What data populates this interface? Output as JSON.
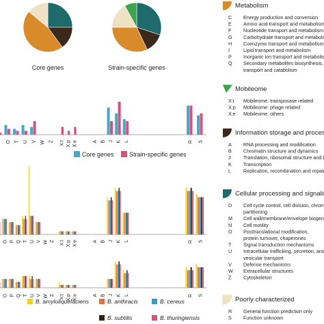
{
  "pie_labels": {
    "core": "Core genes",
    "strain": "Strain-specific genes"
  },
  "colors": {
    "metabolism": "#d98b2b",
    "mobileome": "#3fa34d",
    "info": "#3b2a1c",
    "cellular": "#1f6b6b",
    "poorly": "#efe2c4",
    "core_bar": "#4aa6c4",
    "strain_bar": "#d6517d",
    "b_amylo": "#f2d21b",
    "b_anthracis": "#e0704a",
    "b_cereus": "#3a9bbf",
    "b_subtilis": "#2b2118",
    "b_thuringiensis": "#c95a7a"
  },
  "legend_top": {
    "core": "Core genes",
    "strain": "Strain-specific genes"
  },
  "legend_species": {
    "b_amylo": "B. amyloliquefaciens",
    "b_anthracis": "B. anthracis",
    "b_cereus": "B. cereus",
    "b_subtilis": "B. subtilis",
    "b_thuringiensis": "B. thuringiensis"
  },
  "categories": {
    "metabolism": {
      "title": "Metabolism",
      "rows": [
        [
          "C",
          "Energy production and conversion"
        ],
        [
          "E",
          "Amino acid transport and metabolism"
        ],
        [
          "F",
          "Nucleotide transport and metabolism"
        ],
        [
          "G",
          "Carbohydrate transport and metabolism"
        ],
        [
          "H",
          "Coenzyme transport and metabolism"
        ],
        [
          "I",
          "Lipid transport and metabolism"
        ],
        [
          "P",
          "Inorganic ion transport and metabolism"
        ],
        [
          "Q",
          "Secondary metabolites biosynthesis,"
        ],
        [
          "",
          "transport and catabolism"
        ]
      ]
    },
    "mobileome": {
      "title": "Mobileome",
      "rows": [
        [
          "X:t",
          "Mobileome: transposase related"
        ],
        [
          "X:p",
          "Mobileome: phage related"
        ],
        [
          "X:e",
          "Mobileome: others"
        ]
      ]
    },
    "info": {
      "title": "Information storage and processing",
      "rows": [
        [
          "A",
          "RNA processing and modification"
        ],
        [
          "B",
          "Chromatin structure and dynamics"
        ],
        [
          "J",
          "Translation, ribosomal structure and biogenesis"
        ],
        [
          "K",
          "Transcription"
        ],
        [
          "L",
          "Replication, recombination and repair"
        ]
      ]
    },
    "cellular": {
      "title": "Cellular processing and signaling",
      "rows": [
        [
          "D",
          "Cell cycle control, cell division, chromosome"
        ],
        [
          "",
          "partitioning"
        ],
        [
          "M",
          "Cell wall/membrane/envelope biogenesis"
        ],
        [
          "N",
          "Cell motility"
        ],
        [
          "O",
          "Posttranslational modification,"
        ],
        [
          "",
          "protein turnover, chaperones"
        ],
        [
          "T",
          "Signal transduction mechanisms"
        ],
        [
          "U",
          "Intracellular trafficking, secretion, and"
        ],
        [
          "",
          "vesicular transport"
        ],
        [
          "V",
          "Defense mechanisms"
        ],
        [
          "W",
          "Extracellular structures"
        ],
        [
          "Z",
          "Cytoskeleton"
        ]
      ]
    },
    "poorly": {
      "title": "Poorly characterized",
      "rows": [
        [
          "R",
          "General function prediction only"
        ],
        [
          "S",
          "Function unknown"
        ]
      ]
    }
  },
  "chart_data": [
    {
      "type": "pie",
      "title": "Core genes",
      "slices": [
        {
          "label": "Cellular processing and signaling",
          "value": 25,
          "color": "#1f6b6b"
        },
        {
          "label": "Information storage and processing",
          "value": 15,
          "color": "#3b2a1c"
        },
        {
          "label": "Metabolism",
          "value": 46,
          "color": "#d98b2b"
        },
        {
          "label": "Poorly characterized",
          "value": 14,
          "color": "#efe2c4"
        }
      ]
    },
    {
      "type": "pie",
      "title": "Strain-specific genes",
      "slices": [
        {
          "label": "Cellular processing and signaling",
          "value": 30,
          "color": "#1f6b6b"
        },
        {
          "label": "Information storage and processing",
          "value": 13,
          "color": "#3b2a1c"
        },
        {
          "label": "Metabolism",
          "value": 32,
          "color": "#d98b2b"
        },
        {
          "label": "Poorly characterized",
          "value": 17,
          "color": "#efe2c4"
        },
        {
          "label": "Mobileome",
          "value": 8,
          "color": "#3fa34d"
        }
      ]
    },
    {
      "type": "bar",
      "groups": [
        [
          "N",
          "O",
          "T",
          "U",
          "V",
          "W",
          "Z"
        ],
        [
          "X:t",
          "X:p",
          "X:e"
        ],
        [
          "A",
          "B",
          "J",
          "K",
          "L"
        ],
        [
          "R",
          "S"
        ]
      ],
      "series": [
        {
          "name": "Core genes",
          "color": "#4aa6c4",
          "values": {
            "N": 2,
            "O": 5,
            "T": 3,
            "U": 5,
            "V": 4,
            "W": 0,
            "Z": 0,
            "X:t": 0,
            "X:p": 0,
            "X:e": 0,
            "A": 0,
            "B": 0,
            "J": 14,
            "K": 11,
            "L": 8,
            "R": 15,
            "S": 10
          }
        },
        {
          "name": "Strain-specific genes",
          "color": "#d6517d",
          "values": {
            "N": 1,
            "O": 3,
            "T": 2,
            "U": 2,
            "V": 7,
            "W": 0,
            "Z": 0,
            "X:t": 4,
            "X:p": 2,
            "X:e": 4,
            "A": 0,
            "B": 0,
            "J": 7,
            "K": 17,
            "L": 7,
            "R": 15,
            "S": 11
          }
        }
      ]
    },
    {
      "type": "bar",
      "groups": [
        [
          "N",
          "O",
          "P",
          "Q",
          "T",
          "U",
          "V",
          "W",
          "Z"
        ],
        [
          "X:t",
          "X:p",
          "X:e"
        ],
        [
          "A",
          "B",
          "J",
          "K",
          "L"
        ],
        [
          "R",
          "S"
        ]
      ],
      "series": [
        {
          "name": "B. amyloliquefaciens",
          "color": "#f2d21b",
          "values": {
            "N": 4,
            "O": 5,
            "P": 4,
            "Q": 3,
            "T": 6,
            "U": 22,
            "V": 4,
            "W": 0,
            "Z": 0,
            "X:t": 1,
            "X:p": 1,
            "X:e": 1,
            "A": 0,
            "B": 0,
            "J": 12,
            "K": 15,
            "L": 7,
            "R": 15,
            "S": 13
          }
        },
        {
          "name": "B. anthracis",
          "color": "#e0704a",
          "values": {
            "N": 4,
            "O": 5,
            "P": 4,
            "Q": 3,
            "T": 5,
            "U": 6,
            "V": 4,
            "W": 0,
            "Z": 0,
            "X:t": 1,
            "X:p": 1,
            "X:e": 1,
            "A": 0,
            "B": 0,
            "J": 11,
            "K": 14,
            "L": 7,
            "R": 14,
            "S": 12
          }
        },
        {
          "name": "B. cereus",
          "color": "#3a9bbf",
          "values": {
            "N": 4,
            "O": 5,
            "P": 4,
            "Q": 3,
            "T": 5,
            "U": 6,
            "V": 4,
            "W": 0,
            "Z": 0,
            "X:t": 1,
            "X:p": 1,
            "X:e": 1,
            "A": 0,
            "B": 0,
            "J": 11,
            "K": 14,
            "L": 7,
            "R": 14,
            "S": 12
          }
        },
        {
          "name": "B. subtilis",
          "color": "#2b2118",
          "values": {
            "N": 4,
            "O": 5,
            "P": 4,
            "Q": 3,
            "T": 6,
            "U": 6,
            "V": 4,
            "W": 0,
            "Z": 0,
            "X:t": 1,
            "X:p": 1,
            "X:e": 1,
            "A": 0,
            "B": 0,
            "J": 12,
            "K": 15,
            "L": 7,
            "R": 15,
            "S": 12
          }
        },
        {
          "name": "B. thuringiensis",
          "color": "#c95a7a",
          "values": {
            "N": 4,
            "O": 5,
            "P": 4,
            "Q": 3,
            "T": 5,
            "U": 6,
            "V": 4,
            "W": 0,
            "Z": 0,
            "X:t": 1,
            "X:p": 1,
            "X:e": 1,
            "A": 0,
            "B": 0,
            "J": 11,
            "K": 14,
            "L": 7,
            "R": 14,
            "S": 12
          }
        }
      ]
    },
    {
      "type": "bar",
      "groups": [
        [
          "N",
          "O",
          "P",
          "Q",
          "T",
          "U",
          "V",
          "W",
          "Z"
        ],
        [
          "X:t",
          "X:p",
          "X:e"
        ],
        [
          "A",
          "B",
          "J",
          "K",
          "L"
        ],
        [
          "R",
          "S"
        ]
      ],
      "series": [
        {
          "name": "B. amyloliquefaciens",
          "color": "#f2d21b",
          "values": {
            "N": 2,
            "O": 3,
            "P": 3,
            "Q": 2,
            "T": 4,
            "U": 4,
            "V": 3,
            "W": 0,
            "Z": 0,
            "X:t": 2,
            "X:p": 1,
            "X:e": 1,
            "A": 0,
            "B": 0,
            "J": 3,
            "K": 9,
            "L": 6,
            "R": 7,
            "S": 8
          }
        },
        {
          "name": "B. anthracis",
          "color": "#e0704a",
          "values": {
            "N": 2,
            "O": 3,
            "P": 3,
            "Q": 2,
            "T": 4,
            "U": 3,
            "V": 3,
            "W": 0,
            "Z": 0,
            "X:t": 1,
            "X:p": 1,
            "X:e": 1,
            "A": 0,
            "B": 0,
            "J": 3,
            "K": 8,
            "L": 5,
            "R": 6,
            "S": 7
          }
        },
        {
          "name": "B. cereus",
          "color": "#3a9bbf",
          "values": {
            "N": 2,
            "O": 3,
            "P": 3,
            "Q": 2,
            "T": 4,
            "U": 3,
            "V": 3,
            "W": 0,
            "Z": 0,
            "X:t": 1,
            "X:p": 1,
            "X:e": 1,
            "A": 0,
            "B": 0,
            "J": 3,
            "K": 8,
            "L": 5,
            "R": 6,
            "S": 7
          }
        },
        {
          "name": "B. subtilis",
          "color": "#2b2118",
          "values": {
            "N": 2,
            "O": 3,
            "P": 3,
            "Q": 2,
            "T": 4,
            "U": 4,
            "V": 3,
            "W": 0,
            "Z": 0,
            "X:t": 1,
            "X:p": 1,
            "X:e": 1,
            "A": 0,
            "B": 0,
            "J": 3,
            "K": 9,
            "L": 6,
            "R": 7,
            "S": 7
          }
        },
        {
          "name": "B. thuringiensis",
          "color": "#c95a7a",
          "values": {
            "N": 2,
            "O": 3,
            "P": 3,
            "Q": 2,
            "T": 4,
            "U": 3,
            "V": 3,
            "W": 0,
            "Z": 0,
            "X:t": 1,
            "X:p": 1,
            "X:e": 1,
            "A": 0,
            "B": 0,
            "J": 3,
            "K": 8,
            "L": 5,
            "R": 6,
            "S": 7
          }
        }
      ]
    }
  ]
}
